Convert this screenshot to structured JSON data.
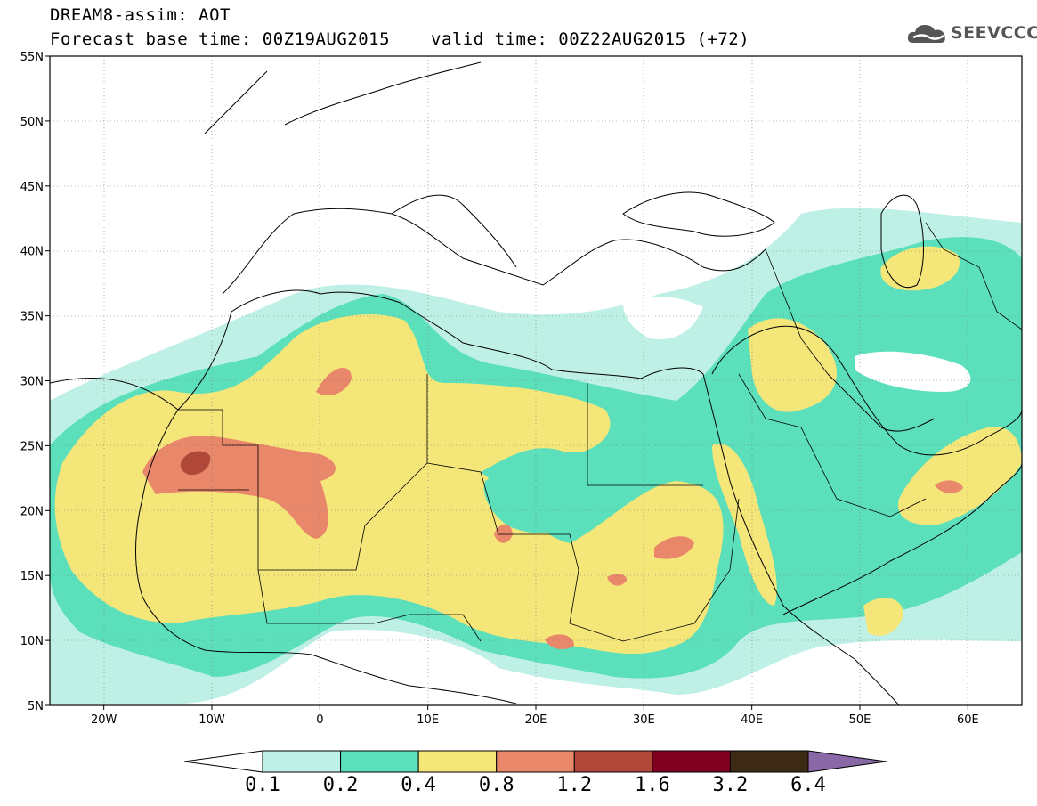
{
  "header": {
    "line1": "DREAM8-assim: AOT",
    "base_time": "Forecast base time: 00Z19AUG2015",
    "valid_time": "valid time: 00Z22AUG2015 (+72)"
  },
  "logo": {
    "text": "SEEVCCC",
    "icon": "cloud-icon"
  },
  "map": {
    "lon_range": [
      -25,
      65
    ],
    "lat_range": [
      5,
      55
    ],
    "lat_labels": [
      "55N",
      "50N",
      "45N",
      "40N",
      "35N",
      "30N",
      "25N",
      "20N",
      "15N",
      "10N",
      "5N"
    ],
    "lon_labels": [
      "20W",
      "10W",
      "0",
      "10E",
      "20E",
      "30E",
      "40E",
      "50E",
      "60E"
    ]
  },
  "colorbar": {
    "levels": [
      "0.1",
      "0.2",
      "0.4",
      "0.8",
      "1.2",
      "1.6",
      "3.2",
      "6.4"
    ],
    "colors": [
      "#ffffff",
      "#bff0e6",
      "#5ce0bc",
      "#f5e67a",
      "#e9876a",
      "#b0483a",
      "#800020",
      "#3c2a14",
      "#8a68a8"
    ]
  }
}
